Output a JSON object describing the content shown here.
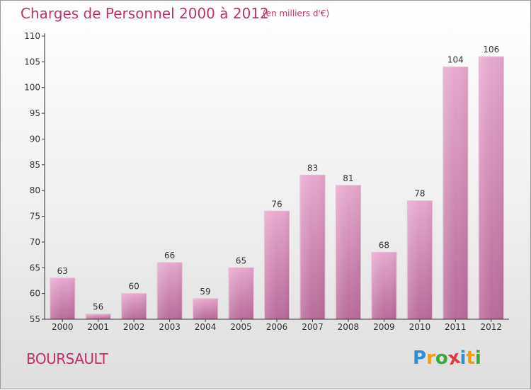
{
  "header": {
    "title": "Charges de Personnel 2000 à 2012",
    "unit": "(en milliers d'€)"
  },
  "footer": {
    "commune": "BOURSAULT",
    "logo_letters": [
      "P",
      "r",
      "o",
      "x",
      "i",
      "t",
      "i"
    ],
    "logo_colors": [
      "#2e8fd6",
      "#f39c12",
      "#3aa83a",
      "#e03b3b",
      "#2e8fd6",
      "#f39c12",
      "#3aa83a"
    ]
  },
  "chart_data": {
    "type": "bar",
    "categories": [
      "2000",
      "2001",
      "2002",
      "2003",
      "2004",
      "2005",
      "2006",
      "2007",
      "2008",
      "2009",
      "2010",
      "2011",
      "2012"
    ],
    "values": [
      63,
      56,
      60,
      66,
      59,
      65,
      76,
      83,
      81,
      68,
      78,
      104,
      106
    ],
    "ylim": [
      55,
      110
    ],
    "yticks": [
      55,
      60,
      65,
      70,
      75,
      80,
      85,
      90,
      95,
      100,
      105,
      110
    ],
    "bar_color": "#d98ab5",
    "grid": false,
    "data_labels": true
  }
}
